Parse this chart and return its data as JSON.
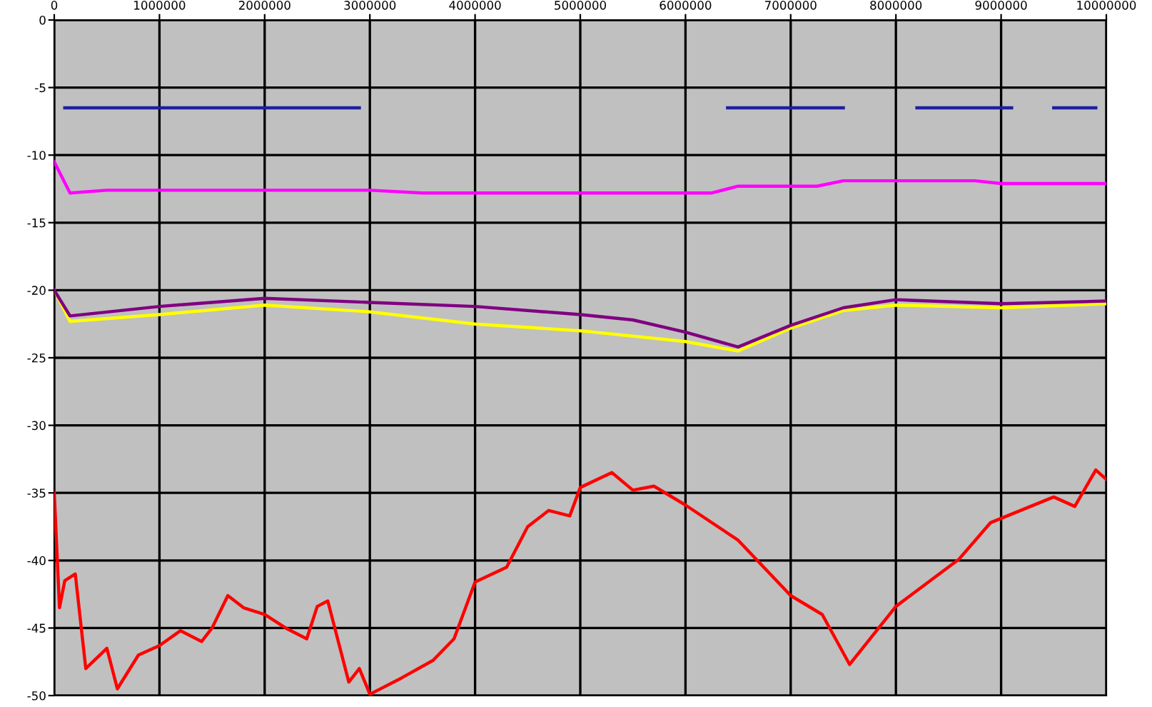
{
  "chart_data": {
    "type": "line",
    "xlim": [
      0,
      10000000
    ],
    "ylim": [
      -50,
      0
    ],
    "xticks": [
      0,
      1000000,
      2000000,
      3000000,
      4000000,
      5000000,
      6000000,
      7000000,
      8000000,
      9000000,
      10000000
    ],
    "yticks": [
      0,
      -5,
      -10,
      -15,
      -20,
      -25,
      -30,
      -35,
      -40,
      -45,
      -50
    ],
    "grid": true,
    "legend": false,
    "marker": "none",
    "line_style": "solid",
    "series": [
      {
        "color": "#1f1f9f",
        "x": [
          100000,
          500000,
          1000000,
          1500000,
          2000000,
          2500000,
          2900000,
          null,
          6400000,
          7000000,
          7500000,
          null,
          8200000,
          8600000,
          9100000,
          null,
          9500000,
          9900000
        ],
        "values": [
          -6.5,
          -6.5,
          -6.5,
          -6.5,
          -6.5,
          -6.5,
          -6.5,
          null,
          -6.5,
          -6.5,
          -6.5,
          null,
          -6.5,
          -6.5,
          -6.5,
          null,
          -6.5,
          -6.5
        ]
      },
      {
        "color": "#ff00ff",
        "x": [
          0,
          150000,
          500000,
          1500000,
          3000000,
          3500000,
          5000000,
          6250000,
          6500000,
          7250000,
          7500000,
          8750000,
          9000000,
          10000000
        ],
        "values": [
          -10.5,
          -12.8,
          -12.6,
          -12.6,
          -12.6,
          -12.8,
          -12.8,
          -12.8,
          -12.3,
          -12.3,
          -11.9,
          -11.9,
          -12.1,
          -12.1
        ]
      },
      {
        "color": "#ffff00",
        "x": [
          0,
          150000,
          1000000,
          2000000,
          3000000,
          4000000,
          5000000,
          6000000,
          6500000,
          7000000,
          7500000,
          8000000,
          9000000,
          10000000
        ],
        "values": [
          -20.0,
          -22.3,
          -21.8,
          -21.1,
          -21.6,
          -22.5,
          -23.0,
          -23.8,
          -24.5,
          -22.8,
          -21.5,
          -21.1,
          -21.3,
          -21.0
        ]
      },
      {
        "color": "#800080",
        "x": [
          0,
          150000,
          1000000,
          2000000,
          3000000,
          4000000,
          5000000,
          5500000,
          6000000,
          6500000,
          7000000,
          7500000,
          8000000,
          9000000,
          10000000
        ],
        "values": [
          -20.0,
          -21.9,
          -21.2,
          -20.6,
          -20.9,
          -21.2,
          -21.8,
          -22.2,
          -23.1,
          -24.2,
          -22.6,
          -21.3,
          -20.7,
          -21.0,
          -20.8
        ]
      },
      {
        "color": "#ff0000",
        "x": [
          0,
          50000,
          100000,
          200000,
          300000,
          500000,
          600000,
          800000,
          1000000,
          1200000,
          1400000,
          1500000,
          1650000,
          1800000,
          2000000,
          2200000,
          2400000,
          2500000,
          2600000,
          2800000,
          2900000,
          3000000,
          3300000,
          3600000,
          3800000,
          4000000,
          4300000,
          4500000,
          4700000,
          4900000,
          5000000,
          5300000,
          5500000,
          5700000,
          6000000,
          6500000,
          7000000,
          7300000,
          7560000,
          8000000,
          8600000,
          8900000,
          9500000,
          9700000,
          9900000,
          10000000
        ],
        "values": [
          -35.0,
          -43.5,
          -41.5,
          -41.0,
          -48.0,
          -46.5,
          -49.5,
          -47.0,
          -46.3,
          -45.2,
          -46.0,
          -45.0,
          -42.6,
          -43.5,
          -44.0,
          -45.0,
          -45.8,
          -43.4,
          -43.0,
          -49.0,
          -48.0,
          -49.9,
          -48.7,
          -47.4,
          -45.8,
          -41.6,
          -40.5,
          -37.5,
          -36.3,
          -36.7,
          -34.6,
          -33.5,
          -34.8,
          -34.5,
          -35.9,
          -38.5,
          -42.6,
          -44.0,
          -47.7,
          -43.4,
          -39.9,
          -37.2,
          -35.3,
          -36.0,
          -33.3,
          -34.0
        ]
      }
    ]
  }
}
